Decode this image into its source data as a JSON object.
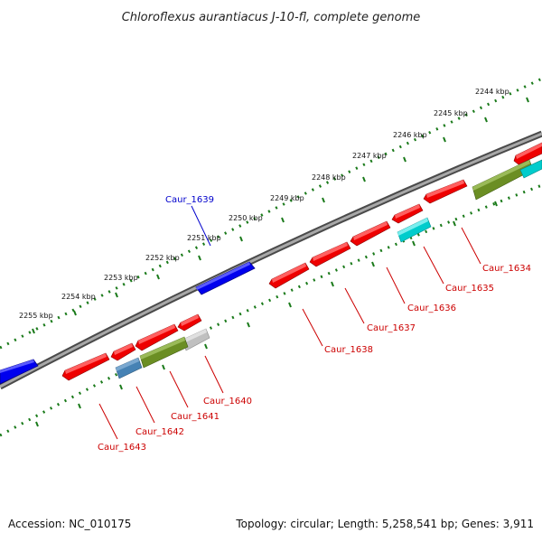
{
  "title": "Chloroflexus aurantiacus J-10-fl, complete genome",
  "footer": {
    "accession": "Accession: NC_010175",
    "topology": "Topology: circular; Length: 5,258,541 bp; Genes: 3,911"
  },
  "scale_labels": [
    "2244 kbp",
    "2245 kbp",
    "2246 kbp",
    "2247 kbp",
    "2248 kbp",
    "2249 kbp",
    "2250 kbp",
    "2251 kbp",
    "2252 kbp",
    "2253 kbp",
    "2254 kbp",
    "2255 kbp"
  ],
  "genes": [
    {
      "label": "Caur_1634",
      "color": "#cc0000"
    },
    {
      "label": "Caur_1635",
      "color": "#cc0000"
    },
    {
      "label": "Caur_1636",
      "color": "#cc0000"
    },
    {
      "label": "Caur_1637",
      "color": "#cc0000"
    },
    {
      "label": "Caur_1638",
      "color": "#cc0000"
    },
    {
      "label": "Caur_1639",
      "color": "#0000cc"
    },
    {
      "label": "Caur_1640",
      "color": "#cc0000"
    },
    {
      "label": "Caur_1641",
      "color": "#cc0000"
    },
    {
      "label": "Caur_1642",
      "color": "#cc0000"
    },
    {
      "label": "Caur_1643",
      "color": "#cc0000"
    }
  ],
  "colors": {
    "forward_gene": "#0000ff",
    "reverse_gene": "#ff0000",
    "cog_olive": "#6b8e23",
    "cog_cyan": "#00cccc",
    "cog_steel": "#4682b4",
    "cog_gray": "#c0c0c0",
    "backbone": "#808080",
    "ticks": "#1a7a1a"
  }
}
